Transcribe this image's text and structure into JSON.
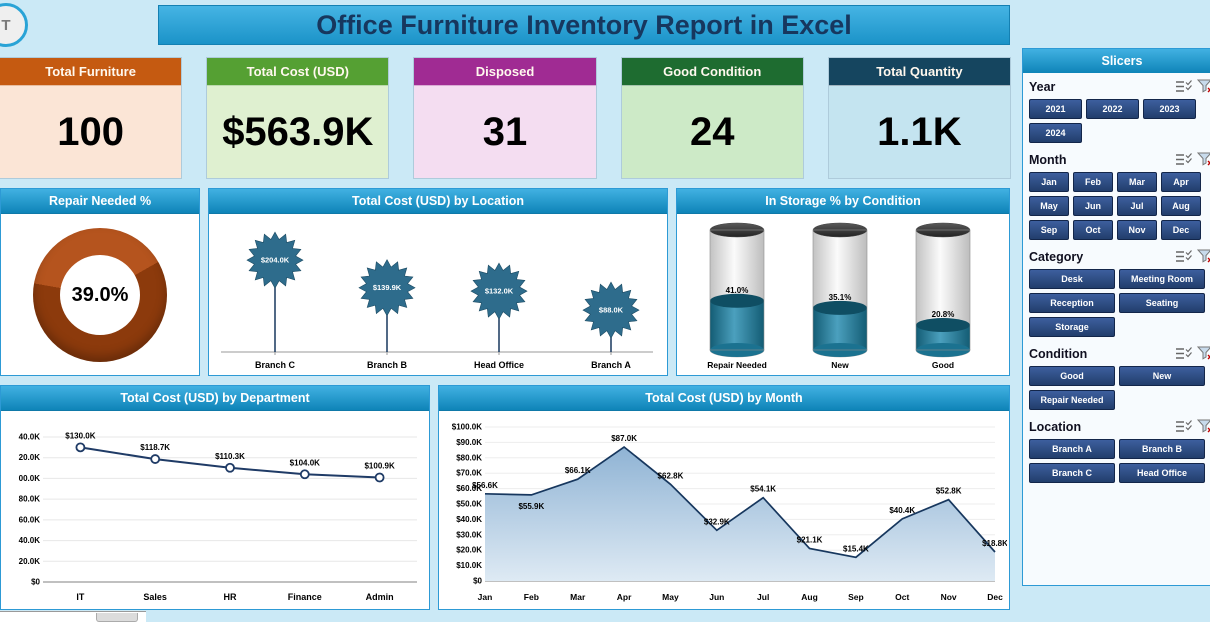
{
  "page": {
    "title": "Office Furniture Inventory Report in Excel",
    "logo_text": "T"
  },
  "kpis": [
    {
      "label": "Total Furniture",
      "value": "100",
      "header_color": "#C55A11",
      "body_color": "#FBE5D6"
    },
    {
      "label": "Total Cost (USD)",
      "value": "$563.9K",
      "header_color": "#55A033",
      "body_color": "#DFF0D0"
    },
    {
      "label": "Disposed",
      "value": "31",
      "header_color": "#A02B93",
      "body_color": "#F4DDF1"
    },
    {
      "label": "Good Condition",
      "value": "24",
      "header_color": "#1E6C30",
      "body_color": "#CDEAC7"
    },
    {
      "label": "Total Quantity",
      "value": "1.1K",
      "header_color": "#15455F",
      "body_color": "#C4E4F0"
    }
  ],
  "chart_data": [
    {
      "id": "repair_donut",
      "type": "pie",
      "title": "Repair Needed %",
      "segments": [
        39.0,
        61.0
      ],
      "center_label": "39.0%",
      "colors": [
        "#B5541E",
        "#8C3A0C"
      ]
    },
    {
      "id": "cost_by_location",
      "type": "bar",
      "style": "star-lollipop",
      "title": "Total Cost (USD) by Location",
      "categories": [
        "Branch C",
        "Branch B",
        "Head Office",
        "Branch A"
      ],
      "values_k": [
        204.0,
        139.9,
        132.0,
        88.0
      ],
      "labels": [
        "$204.0K",
        "$139.9K",
        "$132.0K",
        "$88.0K"
      ],
      "marker_color": "#2E6C8C"
    },
    {
      "id": "storage_by_condition",
      "type": "bar",
      "style": "cylinder",
      "title": "In Storage % by Condition",
      "categories": [
        "Repair Needed",
        "New",
        "Good"
      ],
      "values_pct": [
        41.0,
        35.1,
        20.8
      ],
      "labels": [
        "41.0%",
        "35.1%",
        "20.8%"
      ],
      "fill_color": "#1F7E9E"
    },
    {
      "id": "cost_by_department",
      "type": "line",
      "title": "Total Cost (USD) by Department",
      "categories": [
        "IT",
        "Sales",
        "HR",
        "Finance",
        "Admin"
      ],
      "values_k": [
        130.0,
        118.7,
        110.3,
        104.0,
        100.9
      ],
      "labels": [
        "$130.0K",
        "$118.7K",
        "$110.3K",
        "$104.0K",
        "$100.9K"
      ],
      "ylim_k": [
        0,
        140
      ],
      "ytick_labels_top_to_bottom": [
        "40.0K",
        "20.0K",
        "00.0K",
        "80.0K",
        "60.0K",
        "40.0K",
        "20.0K",
        "$0"
      ],
      "line_color": "#1F3B66"
    },
    {
      "id": "cost_by_month",
      "type": "area",
      "title": "Total Cost (USD) by Month",
      "categories": [
        "Jan",
        "Feb",
        "Mar",
        "Apr",
        "May",
        "Jun",
        "Jul",
        "Aug",
        "Sep",
        "Oct",
        "Nov",
        "Dec"
      ],
      "values_k": [
        56.6,
        55.9,
        66.1,
        87.0,
        62.8,
        32.9,
        54.1,
        21.1,
        15.4,
        40.4,
        52.8,
        18.8
      ],
      "labels": [
        "$56.6K",
        "$55.9K",
        "$66.1K",
        "$87.0K",
        "$62.8K",
        "$32.9K",
        "$54.1K",
        "$21.1K",
        "$15.4K",
        "$40.4K",
        "$52.8K",
        "$18.8K"
      ],
      "ylim_k": [
        0,
        100
      ],
      "ytick_labels_top_to_bottom": [
        "$100.0K",
        "$90.0K",
        "$80.0K",
        "$70.0K",
        "$60.0K",
        "$50.0K",
        "$40.0K",
        "$30.0K",
        "$20.0K",
        "$10.0K",
        "$0"
      ],
      "line_color": "#17375E"
    }
  ],
  "slicers": {
    "header": "Slicers",
    "sections": [
      {
        "id": "year",
        "title": "Year",
        "buttons": [
          "2021",
          "2022",
          "2023",
          "2024"
        ]
      },
      {
        "id": "month",
        "title": "Month",
        "buttons": [
          "Jan",
          "Feb",
          "Mar",
          "Apr",
          "May",
          "Jun",
          "Jul",
          "Aug",
          "Sep",
          "Oct",
          "Nov",
          "Dec"
        ]
      },
      {
        "id": "category",
        "title": "Category",
        "buttons": [
          "Desk",
          "Meeting Room",
          "Reception",
          "Seating",
          "Storage"
        ]
      },
      {
        "id": "condition",
        "title": "Condition",
        "buttons": [
          "Good",
          "New",
          "Repair Needed"
        ]
      },
      {
        "id": "location",
        "title": "Location",
        "buttons": [
          "Branch A",
          "Branch B",
          "Branch C",
          "Head Office"
        ]
      }
    ]
  },
  "colors": {
    "page_bg": "#CBE9F6",
    "panel_header": "#1E9CD7",
    "slicer_button": "#2A4470",
    "donut": "#A8430F",
    "star": "#2E6C8C",
    "cylinder": "#1F7E9E",
    "line": "#17375E"
  }
}
